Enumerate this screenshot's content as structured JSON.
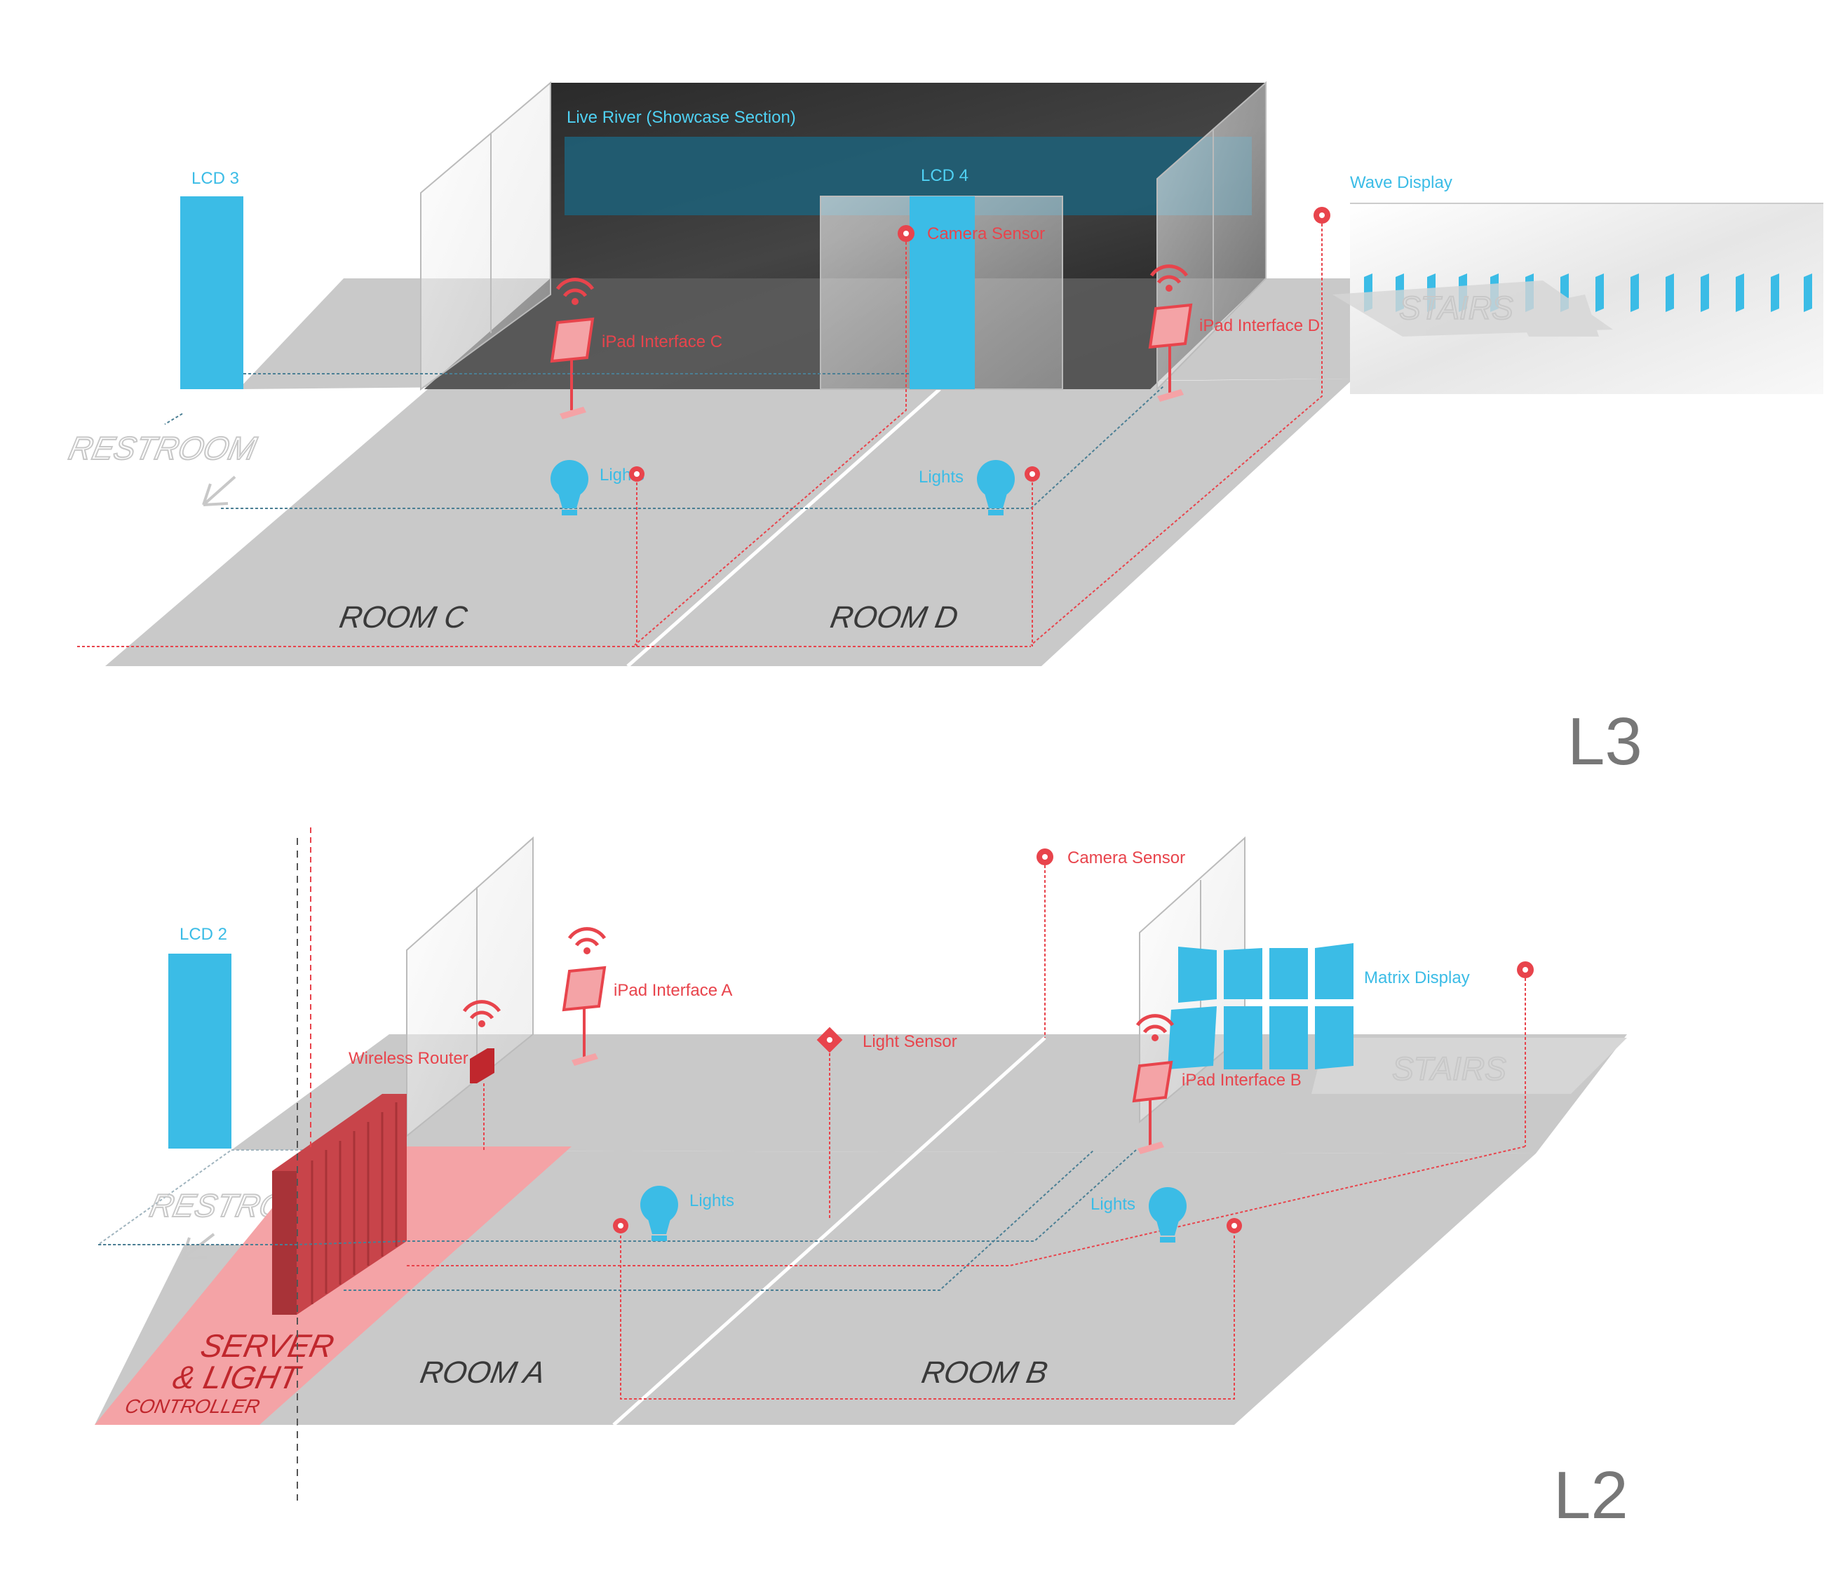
{
  "level_3": {
    "level_label": "L3",
    "showcase_label": "Live River (Showcase Section)",
    "lcd3": "LCD 3",
    "lcd4": "LCD 4",
    "camera_sensor": "Camera Sensor",
    "wave_display": "Wave Display",
    "ipad_c": "iPad Interface C",
    "ipad_d": "iPad Interface D",
    "lights_c": "Lights",
    "lights_d": "Lights",
    "restroom": "RESTROOM",
    "stairs": "STAIRS",
    "room_c": "ROOM C",
    "room_d": "ROOM D"
  },
  "level_2": {
    "level_label": "L2",
    "lcd2": "LCD 2",
    "camera_sensor": "Camera Sensor",
    "ipad_a": "iPad Interface A",
    "ipad_b": "iPad Interface B",
    "wireless_router": "Wireless Router",
    "light_sensor": "Light Sensor",
    "matrix_display": "Matrix Display",
    "lights_a": "Lights",
    "lights_b": "Lights",
    "restroom": "RESTRO",
    "stairs": "STAIRS",
    "room_a": "ROOM A",
    "room_b": "ROOM B",
    "server_line1": "SERVER",
    "server_line2": "& LIGHT",
    "server_line3": "CONTROLLER"
  },
  "colors": {
    "floor": "#c9c9c9",
    "accent_blue": "#3bbce6",
    "accent_red": "#e8444c",
    "showcase_dark": "#2e2e2e",
    "server_pink": "#f4a3a6",
    "server_dark": "#a83338"
  }
}
